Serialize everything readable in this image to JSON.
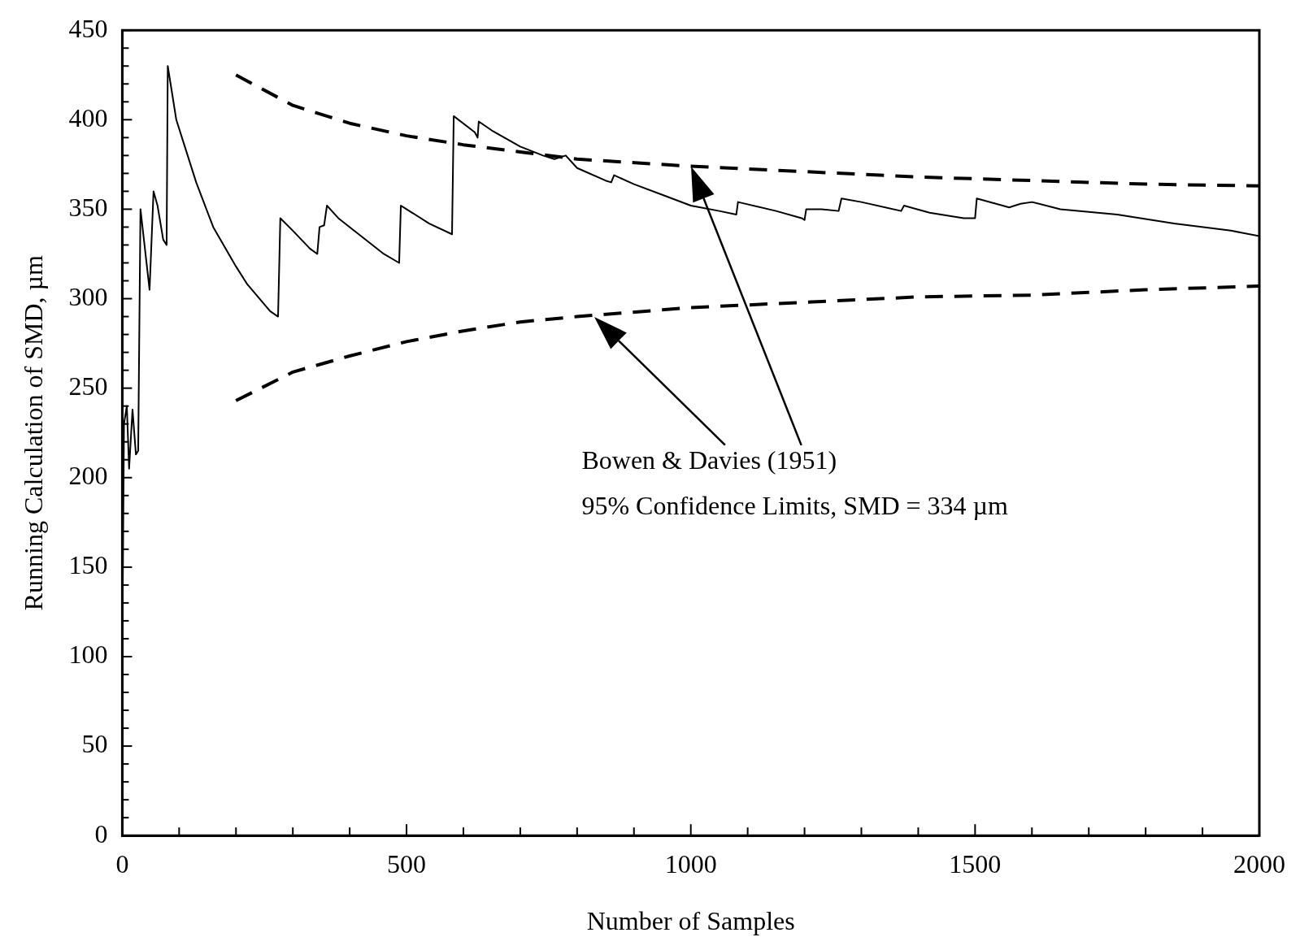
{
  "chart_data": {
    "type": "line",
    "xlabel": "Number of Samples",
    "ylabel": "Running Calculation of SMD, µm",
    "xlim": [
      0,
      2000
    ],
    "ylim": [
      0,
      450
    ],
    "xticks": [
      0,
      {
        "value": 100,
        "label": null
      },
      {
        "value": 200,
        "label": null
      },
      {
        "value": 300,
        "label": null
      },
      {
        "value": 400,
        "label": null
      },
      500,
      {
        "value": 600,
        "label": null
      },
      {
        "value": 700,
        "label": null
      },
      {
        "value": 800,
        "label": null
      },
      {
        "value": 900,
        "label": null
      },
      1000,
      {
        "value": 1100,
        "label": null
      },
      {
        "value": 1200,
        "label": null
      },
      {
        "value": 1300,
        "label": null
      },
      {
        "value": 1400,
        "label": null
      },
      1500,
      {
        "value": 1600,
        "label": null
      },
      {
        "value": 1700,
        "label": null
      },
      {
        "value": 1800,
        "label": null
      },
      {
        "value": 1900,
        "label": null
      },
      2000
    ],
    "yticks": [
      0,
      {
        "value": 10,
        "label": null
      },
      {
        "value": 20,
        "label": null
      },
      {
        "value": 30,
        "label": null
      },
      {
        "value": 40,
        "label": null
      },
      50,
      {
        "value": 60,
        "label": null
      },
      {
        "value": 70,
        "label": null
      },
      {
        "value": 80,
        "label": null
      },
      {
        "value": 90,
        "label": null
      },
      100,
      {
        "value": 110,
        "label": null
      },
      {
        "value": 120,
        "label": null
      },
      {
        "value": 130,
        "label": null
      },
      {
        "value": 140,
        "label": null
      },
      150,
      {
        "value": 160,
        "label": null
      },
      {
        "value": 170,
        "label": null
      },
      {
        "value": 180,
        "label": null
      },
      {
        "value": 190,
        "label": null
      },
      200,
      {
        "value": 210,
        "label": null
      },
      {
        "value": 220,
        "label": null
      },
      {
        "value": 230,
        "label": null
      },
      {
        "value": 240,
        "label": null
      },
      250,
      {
        "value": 260,
        "label": null
      },
      {
        "value": 270,
        "label": null
      },
      {
        "value": 280,
        "label": null
      },
      {
        "value": 290,
        "label": null
      },
      300,
      {
        "value": 310,
        "label": null
      },
      {
        "value": 320,
        "label": null
      },
      {
        "value": 330,
        "label": null
      },
      {
        "value": 340,
        "label": null
      },
      350,
      {
        "value": 360,
        "label": null
      },
      {
        "value": 370,
        "label": null
      },
      {
        "value": 380,
        "label": null
      },
      {
        "value": 390,
        "label": null
      },
      400,
      {
        "value": 410,
        "label": null
      },
      {
        "value": 420,
        "label": null
      },
      {
        "value": 430,
        "label": null
      },
      {
        "value": 440,
        "label": null
      },
      450
    ],
    "grid": false,
    "legend": false,
    "marker": "none",
    "annotations": [
      "Bowen & Davies (1951)\n95% Confidence Limits, SMD = 334 µm"
    ],
    "series": [
      {
        "color": "#000000",
        "line_style": "solid",
        "x": [
          0,
          3,
          8,
          12,
          18,
          24,
          28,
          32,
          48,
          55,
          62,
          72,
          78,
          80,
          85,
          95,
          110,
          130,
          160,
          200,
          220,
          260,
          274,
          278,
          300,
          330,
          343,
          347,
          355,
          360,
          380,
          420,
          460,
          487,
          490,
          510,
          540,
          580,
          583,
          620,
          625,
          627,
          650,
          700,
          740,
          760,
          780,
          800,
          850,
          860,
          865,
          900,
          950,
          1000,
          1050,
          1080,
          1083,
          1150,
          1195,
          1200,
          1203,
          1230,
          1260,
          1265,
          1300,
          1370,
          1375,
          1420,
          1480,
          1500,
          1503,
          1560,
          1580,
          1600,
          1650,
          1750,
          1850,
          1950,
          2000
        ],
        "values": [
          100,
          230,
          240,
          205,
          238,
          213,
          215,
          350,
          305,
          360,
          352,
          333,
          330,
          430,
          420,
          400,
          385,
          365,
          340,
          318,
          308,
          293,
          290,
          345,
          338,
          328,
          325,
          340,
          341,
          352,
          345,
          335,
          325,
          320,
          352,
          348,
          342,
          336,
          402,
          393,
          390,
          399,
          394,
          385,
          380,
          378,
          380,
          373,
          366,
          365,
          369,
          364,
          358,
          352,
          349,
          347,
          354,
          349,
          345,
          344,
          350,
          350,
          349,
          356,
          354,
          349,
          352,
          348,
          345,
          345,
          356,
          351,
          353,
          354,
          350,
          347,
          342,
          338,
          335
        ]
      },
      {
        "color": "#000000",
        "line_style": "dashed",
        "x": [
          200,
          300,
          400,
          500,
          600,
          700,
          800,
          1000,
          1200,
          1400,
          1600,
          1800,
          2000
        ],
        "values": [
          425,
          408,
          398,
          391,
          386,
          382,
          378,
          374,
          371,
          368,
          366,
          364,
          363
        ]
      },
      {
        "color": "#000000",
        "line_style": "dashed",
        "x": [
          200,
          300,
          400,
          500,
          600,
          700,
          800,
          1000,
          1200,
          1400,
          1600,
          1800,
          2000
        ],
        "values": [
          243,
          259,
          268,
          276,
          282,
          287,
          290,
          295,
          298,
          301,
          302,
          305,
          307
        ]
      }
    ]
  }
}
